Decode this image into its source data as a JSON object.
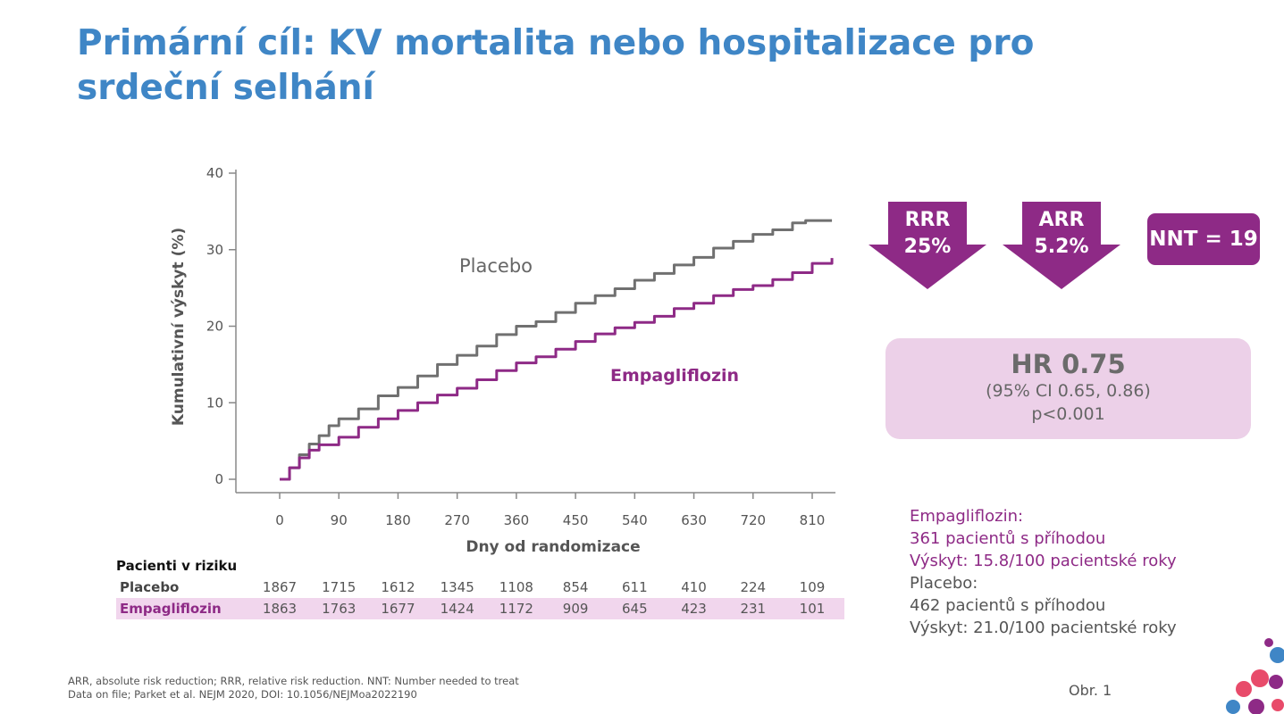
{
  "title": {
    "line1": "Primární cíl: KV mortalita nebo hospitalizace pro",
    "line2": "srdeční selhání"
  },
  "chart_data": {
    "type": "line",
    "xlabel": "Dny od randomizace",
    "ylabel": "Kumulativní výskyt (%)",
    "xlim": [
      0,
      840
    ],
    "ylim": [
      0,
      40
    ],
    "x_ticks": [
      0,
      90,
      180,
      270,
      360,
      450,
      540,
      630,
      720,
      810
    ],
    "y_ticks": [
      0,
      10,
      20,
      30,
      40
    ],
    "grid": false,
    "series": [
      {
        "name": "Placebo",
        "color": "#707070",
        "x": [
          0,
          15,
          30,
          45,
          60,
          75,
          90,
          120,
          150,
          180,
          210,
          240,
          270,
          300,
          330,
          360,
          390,
          420,
          450,
          480,
          510,
          540,
          570,
          600,
          630,
          660,
          690,
          720,
          750,
          780,
          800,
          840
        ],
        "y": [
          0,
          1.5,
          3.2,
          4.6,
          5.7,
          7,
          7.9,
          9.2,
          10.9,
          12,
          13.5,
          15,
          16.2,
          17.4,
          18.9,
          20,
          20.6,
          21.8,
          23,
          24,
          24.9,
          26,
          26.9,
          28,
          29,
          30.2,
          31.1,
          32,
          32.6,
          33.5,
          33.8,
          33.8
        ]
      },
      {
        "name": "Empagliflozin",
        "color": "#8e2a86",
        "x": [
          0,
          15,
          30,
          45,
          60,
          90,
          120,
          150,
          180,
          210,
          240,
          270,
          300,
          330,
          360,
          390,
          420,
          450,
          480,
          510,
          540,
          570,
          600,
          630,
          660,
          690,
          720,
          750,
          780,
          810,
          840
        ],
        "y": [
          0,
          1.5,
          2.8,
          3.8,
          4.5,
          5.5,
          6.8,
          7.9,
          9,
          10,
          11,
          11.9,
          13,
          14.2,
          15.2,
          16,
          17,
          18,
          19,
          19.8,
          20.5,
          21.3,
          22.3,
          23,
          24,
          24.8,
          25.3,
          26.1,
          27,
          28.2,
          28.9
        ]
      }
    ]
  },
  "risk_table": {
    "title": "Pacienti v riziku",
    "rows": [
      {
        "name": "Placebo",
        "values": [
          "1867",
          "1715",
          "1612",
          "1345",
          "1108",
          "854",
          "611",
          "410",
          "224",
          "109"
        ]
      },
      {
        "name": "Empagliflozin",
        "values": [
          "1863",
          "1763",
          "1677",
          "1424",
          "1172",
          "909",
          "645",
          "423",
          "231",
          "101"
        ]
      }
    ]
  },
  "metrics": {
    "rrr": {
      "label": "RRR",
      "value": "25%"
    },
    "arr": {
      "label": "ARR",
      "value": "5.2%"
    },
    "nnt": "NNT = 19"
  },
  "hr": {
    "main": "HR 0.75",
    "ci": "(95% CI 0.65, 0.86)",
    "p": "p<0.001"
  },
  "events": {
    "empa_name": "Empagliflozin:",
    "empa_count": "361 pacientů s příhodou",
    "empa_rate": "Výskyt: 15.8/100 pacientské roky",
    "placebo_name": "Placebo:",
    "placebo_count": "462 pacientů s příhodou",
    "placebo_rate": "Výskyt: 21.0/100 pacientské roky"
  },
  "footnote": {
    "line1": "ARR, absolute risk reduction; RRR, relative risk reduction. NNT: Number needed to treat",
    "line2": "Data on file; Parket et al. NEJM 2020, DOI: 10.1056/NEJMoa2022190"
  },
  "figure_label": "Obr. 1",
  "colors": {
    "title": "#3f86c6",
    "accent": "#8e2a86",
    "placebo": "#707070",
    "hr_box": "#ecd0e8"
  }
}
